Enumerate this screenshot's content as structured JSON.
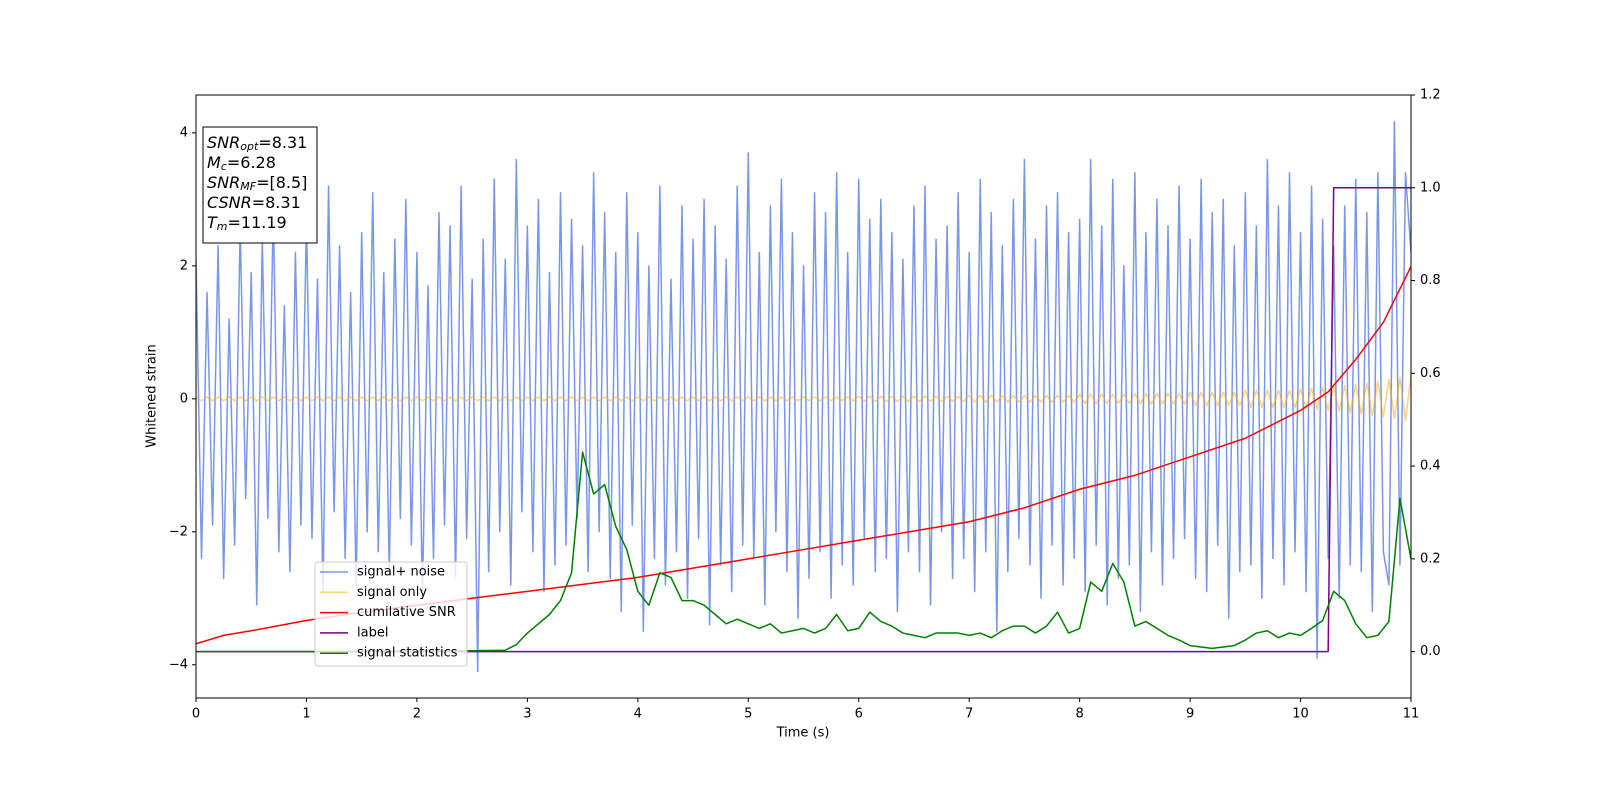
{
  "chart_data": {
    "type": "line",
    "xlabel": "Time (s)",
    "ylabel": "Whitened strain",
    "xlim": [
      0,
      11
    ],
    "xticks": [
      0,
      1,
      2,
      3,
      4,
      5,
      6,
      7,
      8,
      9,
      10,
      11
    ],
    "ylim": [
      -4.5,
      4.57
    ],
    "yticks": [
      {
        "value": -4,
        "label": "−4"
      },
      {
        "value": -2,
        "label": "−2"
      },
      0,
      2,
      4
    ],
    "y2lim": [
      -0.1,
      1.2
    ],
    "y2ticks": [
      {
        "value": 0,
        "label": "0.0"
      },
      0.2,
      0.4,
      0.6,
      0.8,
      {
        "value": 1,
        "label": "1.0"
      },
      1.2
    ],
    "annotations": [
      {
        "symbol": "SNR",
        "subscript": "opt",
        "text": "=8.31"
      },
      {
        "symbol": "M",
        "subscript": "c",
        "text": "=6.28"
      },
      {
        "symbol": "SNR",
        "subscript": "MF",
        "text": "=[8.5]"
      },
      {
        "symbol": "CSNR",
        "text": "=8.31"
      },
      {
        "symbol": "T",
        "subscript": "m",
        "text": "=11.19"
      }
    ],
    "x": [
      0,
      0.05,
      0.1,
      0.15,
      0.2,
      0.25,
      0.3,
      0.35,
      0.4,
      0.45,
      0.5,
      0.55,
      0.6,
      0.65,
      0.7,
      0.75,
      0.8,
      0.85,
      0.9,
      0.95,
      1,
      1.05,
      1.1,
      1.15,
      1.2,
      1.25,
      1.3,
      1.35,
      1.4,
      1.45,
      1.5,
      1.55,
      1.6,
      1.65,
      1.7,
      1.75,
      1.8,
      1.85,
      1.9,
      1.95,
      2,
      2.05,
      2.1,
      2.15,
      2.2,
      2.25,
      2.3,
      2.35,
      2.4,
      2.45,
      2.5,
      2.55,
      2.6,
      2.65,
      2.7,
      2.75,
      2.8,
      2.85,
      2.9,
      2.95,
      3,
      3.05,
      3.1,
      3.15,
      3.2,
      3.25,
      3.3,
      3.35,
      3.4,
      3.45,
      3.5,
      3.55,
      3.6,
      3.65,
      3.7,
      3.75,
      3.8,
      3.85,
      3.9,
      3.95,
      4,
      4.05,
      4.1,
      4.15,
      4.2,
      4.25,
      4.3,
      4.35,
      4.4,
      4.45,
      4.5,
      4.55,
      4.6,
      4.65,
      4.7,
      4.75,
      4.8,
      4.85,
      4.9,
      4.95,
      5,
      5.05,
      5.1,
      5.15,
      5.2,
      5.25,
      5.3,
      5.35,
      5.4,
      5.45,
      5.5,
      5.55,
      5.6,
      5.65,
      5.7,
      5.75,
      5.8,
      5.85,
      5.9,
      5.95,
      6,
      6.05,
      6.1,
      6.15,
      6.2,
      6.25,
      6.3,
      6.35,
      6.4,
      6.45,
      6.5,
      6.55,
      6.6,
      6.65,
      6.7,
      6.75,
      6.8,
      6.85,
      6.9,
      6.95,
      7,
      7.05,
      7.1,
      7.15,
      7.2,
      7.25,
      7.3,
      7.35,
      7.4,
      7.45,
      7.5,
      7.55,
      7.6,
      7.65,
      7.7,
      7.75,
      7.8,
      7.85,
      7.9,
      7.95,
      8,
      8.05,
      8.1,
      8.15,
      8.2,
      8.25,
      8.3,
      8.35,
      8.4,
      8.45,
      8.5,
      8.55,
      8.6,
      8.65,
      8.7,
      8.75,
      8.8,
      8.85,
      8.9,
      8.95,
      9,
      9.05,
      9.1,
      9.15,
      9.2,
      9.25,
      9.3,
      9.35,
      9.4,
      9.45,
      9.5,
      9.55,
      9.6,
      9.65,
      9.7,
      9.75,
      9.8,
      9.85,
      9.9,
      9.95,
      10,
      10.05,
      10.1,
      10.15,
      10.2,
      10.25,
      10.3,
      10.35,
      10.4,
      10.45,
      10.5,
      10.55,
      10.6,
      10.65,
      10.7,
      10.75,
      10.8,
      10.85,
      10.9,
      10.95,
      11
    ],
    "series": [
      {
        "name": "signal+ noise",
        "color": "royalblue",
        "alpha": 0.7,
        "values": [
          2.1,
          -2.4,
          1.6,
          -1.9,
          2.3,
          -2.7,
          1.2,
          -2.2,
          2.6,
          -1.5,
          1.9,
          -3.1,
          2.4,
          -1.8,
          2.9,
          -2.3,
          1.4,
          -2.6,
          2.2,
          -1.9,
          2.7,
          -2.1,
          1.8,
          -2.9,
          3.2,
          -1.7,
          2.3,
          -2.4,
          1.6,
          -2.8,
          2.5,
          -2.0,
          3.1,
          -2.3,
          1.9,
          -2.6,
          2.4,
          -1.8,
          3.0,
          -2.2,
          2.2,
          -3.0,
          1.7,
          -2.4,
          2.8,
          -1.9,
          2.6,
          -2.7,
          3.2,
          -2.1,
          1.8,
          -4.1,
          2.4,
          -2.6,
          3.3,
          -2.0,
          2.1,
          -2.8,
          3.6,
          -1.7,
          2.6,
          -2.3,
          3.0,
          -2.9,
          1.9,
          -2.5,
          3.1,
          -2.2,
          2.7,
          -1.8,
          2.3,
          -2.6,
          3.4,
          -2.0,
          2.8,
          -2.7,
          2.2,
          -3.2,
          3.1,
          -1.9,
          2.5,
          -3.5,
          2.0,
          -2.4,
          3.2,
          -2.8,
          1.8,
          -2.3,
          2.9,
          -3.0,
          2.4,
          -2.1,
          3.0,
          -3.4,
          2.6,
          -2.5,
          2.1,
          -2.9,
          3.2,
          -2.2,
          3.7,
          -2.4,
          2.2,
          -3.1,
          2.9,
          -2.0,
          3.3,
          -2.6,
          2.5,
          -3.3,
          2.0,
          -2.7,
          3.1,
          -2.3,
          2.8,
          -3.0,
          3.4,
          -2.5,
          2.2,
          -2.8,
          3.3,
          -2.1,
          2.7,
          -2.6,
          3.0,
          -2.4,
          2.5,
          -3.2,
          2.1,
          -2.3,
          2.9,
          -2.6,
          3.2,
          -3.1,
          2.4,
          -2.0,
          2.6,
          -2.7,
          3.1,
          -2.4,
          2.2,
          -2.9,
          3.3,
          -2.3,
          2.8,
          -3.5,
          2.3,
          -2.6,
          3.0,
          -2.1,
          3.6,
          -2.5,
          2.4,
          -3.0,
          2.9,
          -2.2,
          3.1,
          -2.8,
          2.5,
          -2.4,
          2.7,
          -2.9,
          3.6,
          -2.2,
          2.6,
          -3.1,
          3.3,
          -2.7,
          2.0,
          -2.5,
          3.4,
          -3.2,
          2.5,
          -2.3,
          3.0,
          -2.8,
          2.6,
          -2.4,
          3.2,
          -2.1,
          2.4,
          -2.7,
          3.3,
          -2.9,
          2.8,
          -2.2,
          3.0,
          -3.3,
          2.3,
          -2.6,
          3.1,
          -2.5,
          2.6,
          -3.0,
          3.6,
          -2.4,
          2.9,
          -2.8,
          3.4,
          -2.3,
          2.5,
          -2.9,
          3.2,
          -3.9,
          2.7,
          -2.4,
          2.3,
          -3.0,
          2.9,
          -2.5,
          3.3,
          -2.6,
          2.8,
          -3.2,
          3.4,
          -2.3,
          -2.8,
          4.17,
          -2.5,
          3.4,
          2.2
        ]
      },
      {
        "name": "signal only",
        "color": "orange",
        "alpha": 0.5,
        "values": [
          0.03,
          -0.03,
          0.03,
          -0.03,
          0.03,
          -0.03,
          0.03,
          -0.03,
          0.03,
          -0.03,
          0.03,
          -0.03,
          0.03,
          -0.03,
          0.03,
          -0.03,
          0.03,
          -0.03,
          0.03,
          -0.03,
          0.03,
          -0.03,
          0.03,
          -0.03,
          0.03,
          -0.03,
          0.03,
          -0.03,
          0.03,
          -0.03,
          0.03,
          -0.03,
          0.03,
          -0.03,
          0.03,
          -0.03,
          0.03,
          -0.03,
          0.03,
          -0.03,
          0.03,
          -0.03,
          0.03,
          -0.03,
          0.03,
          -0.03,
          0.03,
          -0.03,
          0.03,
          -0.03,
          0.03,
          -0.03,
          0.03,
          -0.03,
          0.03,
          -0.03,
          0.03,
          -0.03,
          0.03,
          -0.03,
          0.03,
          -0.03,
          0.03,
          -0.03,
          0.03,
          -0.03,
          0.03,
          -0.03,
          0.03,
          -0.03,
          0.03,
          -0.03,
          0.03,
          -0.03,
          0.03,
          -0.03,
          0.03,
          -0.03,
          0.03,
          -0.03,
          0.03,
          -0.03,
          0.03,
          -0.03,
          0.03,
          -0.03,
          0.03,
          -0.03,
          0.03,
          -0.03,
          0.03,
          -0.03,
          0.03,
          -0.03,
          0.03,
          -0.03,
          0.03,
          -0.03,
          0.03,
          -0.03,
          0.03,
          -0.03,
          0.03,
          -0.03,
          0.03,
          -0.03,
          0.03,
          -0.03,
          0.03,
          -0.03,
          0.03,
          -0.03,
          0.03,
          -0.03,
          0.03,
          -0.03,
          0.03,
          -0.03,
          0.03,
          -0.03,
          0.04,
          -0.04,
          0.04,
          -0.04,
          0.04,
          -0.04,
          0.04,
          -0.04,
          0.04,
          -0.04,
          0.04,
          -0.04,
          0.04,
          -0.04,
          0.04,
          -0.04,
          0.04,
          -0.04,
          0.04,
          -0.04,
          0.05,
          -0.05,
          0.05,
          -0.05,
          0.05,
          -0.05,
          0.05,
          -0.05,
          0.05,
          -0.05,
          0.05,
          -0.05,
          0.05,
          -0.05,
          0.05,
          -0.05,
          0.05,
          -0.05,
          0.05,
          -0.05,
          0.07,
          -0.07,
          0.07,
          -0.07,
          0.07,
          -0.07,
          0.07,
          -0.07,
          0.07,
          -0.07,
          0.08,
          -0.08,
          0.08,
          -0.08,
          0.08,
          -0.08,
          0.08,
          -0.08,
          0.08,
          -0.08,
          0.1,
          -0.1,
          0.1,
          -0.1,
          0.1,
          -0.1,
          0.1,
          -0.1,
          0.1,
          -0.1,
          0.13,
          -0.13,
          0.13,
          -0.13,
          0.13,
          -0.13,
          0.13,
          -0.13,
          0.13,
          -0.13,
          0.15,
          -0.15,
          0.16,
          -0.16,
          0.17,
          -0.17,
          0.18,
          -0.19,
          0.2,
          -0.21,
          0.22,
          -0.23,
          0.24,
          -0.25,
          0.26,
          -0.27,
          0.29,
          -0.3,
          0.32,
          -0.33,
          0.35
        ]
      },
      {
        "name": "cumilative SNR",
        "color": "red",
        "axis": "y2",
        "x": [
          0,
          0.25,
          0.5,
          1,
          1.5,
          2,
          2.5,
          3,
          3.5,
          4,
          4.5,
          5,
          5.5,
          6,
          6.5,
          7,
          7.5,
          8,
          8.5,
          9,
          9.5,
          10,
          10.25,
          10.5,
          10.75,
          11
        ],
        "values": [
          0.017,
          0.035,
          0.045,
          0.067,
          0.085,
          0.1,
          0.115,
          0.13,
          0.145,
          0.16,
          0.18,
          0.2,
          0.22,
          0.24,
          0.26,
          0.28,
          0.31,
          0.35,
          0.38,
          0.42,
          0.46,
          0.52,
          0.56,
          0.63,
          0.71,
          0.83
        ]
      },
      {
        "name": "label",
        "color": "purple",
        "axis": "y2",
        "x": [
          0,
          10.25,
          10.3,
          11
        ],
        "values": [
          0,
          0,
          1,
          1
        ]
      },
      {
        "name": "signal statistics",
        "color": "green",
        "axis": "y2",
        "x": [
          0,
          1,
          2,
          2.5,
          2.8,
          2.9,
          3,
          3.1,
          3.2,
          3.3,
          3.4,
          3.5,
          3.6,
          3.7,
          3.8,
          3.9,
          4,
          4.1,
          4.2,
          4.3,
          4.4,
          4.5,
          4.6,
          4.7,
          4.8,
          4.9,
          5,
          5.1,
          5.2,
          5.3,
          5.4,
          5.5,
          5.6,
          5.7,
          5.8,
          5.9,
          6,
          6.1,
          6.2,
          6.3,
          6.4,
          6.5,
          6.6,
          6.7,
          6.8,
          6.9,
          7,
          7.1,
          7.2,
          7.3,
          7.4,
          7.5,
          7.6,
          7.7,
          7.8,
          7.9,
          8,
          8.1,
          8.2,
          8.3,
          8.4,
          8.5,
          8.6,
          8.7,
          8.8,
          8.9,
          9,
          9.1,
          9.2,
          9.3,
          9.4,
          9.5,
          9.6,
          9.7,
          9.8,
          9.9,
          10,
          10.1,
          10.2,
          10.3,
          10.4,
          10.5,
          10.6,
          10.7,
          10.8,
          10.9,
          11
        ],
        "values": [
          0,
          0,
          0.001,
          0.002,
          0.003,
          0.015,
          0.04,
          0.06,
          0.08,
          0.11,
          0.17,
          0.43,
          0.34,
          0.36,
          0.27,
          0.22,
          0.13,
          0.1,
          0.17,
          0.16,
          0.11,
          0.11,
          0.1,
          0.08,
          0.06,
          0.07,
          0.06,
          0.05,
          0.06,
          0.04,
          0.045,
          0.05,
          0.04,
          0.05,
          0.08,
          0.045,
          0.05,
          0.085,
          0.065,
          0.055,
          0.04,
          0.035,
          0.03,
          0.04,
          0.04,
          0.04,
          0.035,
          0.04,
          0.03,
          0.045,
          0.055,
          0.055,
          0.04,
          0.055,
          0.085,
          0.04,
          0.05,
          0.15,
          0.13,
          0.19,
          0.15,
          0.055,
          0.065,
          0.05,
          0.035,
          0.025,
          0.013,
          0.01,
          0.007,
          0.01,
          0.013,
          0.025,
          0.04,
          0.045,
          0.03,
          0.04,
          0.035,
          0.05,
          0.067,
          0.13,
          0.11,
          0.06,
          0.03,
          0.035,
          0.065,
          0.33,
          0.2
        ]
      }
    ]
  }
}
